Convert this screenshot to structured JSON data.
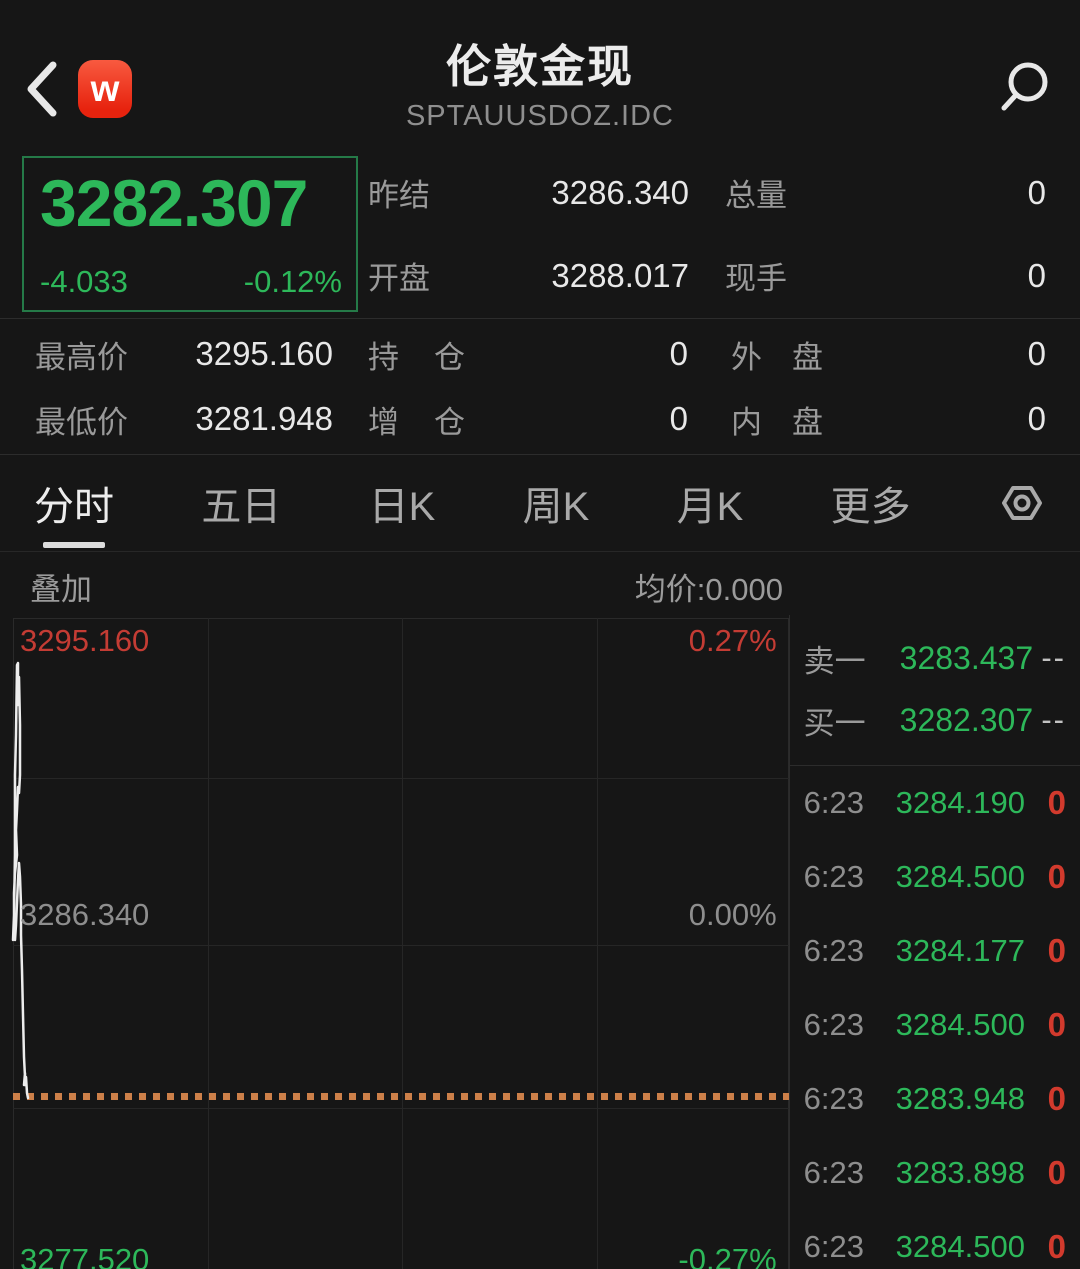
{
  "header": {
    "title": "伦敦金现",
    "subtitle": "SPTAUUSDOZ.IDC",
    "logo_letter": "w"
  },
  "quote": {
    "last_price": "3282.307",
    "change": "-4.033",
    "change_pct": "-0.12%",
    "fields": [
      {
        "label": "昨结",
        "value": "3286.340"
      },
      {
        "label": "总量",
        "value": "0"
      },
      {
        "label": "开盘",
        "value": "3288.017"
      },
      {
        "label": "现手",
        "value": "0"
      }
    ],
    "fields2": [
      {
        "label": "最高价",
        "value": "3295.160"
      },
      {
        "label": "持仓",
        "value": "0"
      },
      {
        "label": "外盘",
        "value": "0"
      },
      {
        "label": "最低价",
        "value": "3281.948"
      },
      {
        "label": "增仓",
        "value": "0"
      },
      {
        "label": "内盘",
        "value": "0"
      }
    ]
  },
  "tabs": {
    "items": [
      {
        "label": "分时"
      },
      {
        "label": "五日"
      },
      {
        "label": "日K"
      },
      {
        "label": "周K"
      },
      {
        "label": "月K"
      },
      {
        "label": "更多"
      }
    ],
    "active": "分时"
  },
  "overlay": {
    "label": "叠加",
    "avg_price": "均价:0.000"
  },
  "chart": {
    "high_price": "3295.160",
    "high_pct": "0.27%",
    "mid_price": "3286.340",
    "mid_pct": "0.00%",
    "low_price": "3277.520",
    "low_pct": "-0.27%",
    "line_points": [
      [
        13,
        325
      ],
      [
        14,
        300
      ],
      [
        15,
        240
      ],
      [
        15,
        160
      ],
      [
        16,
        120
      ],
      [
        17,
        50
      ],
      [
        18,
        48
      ],
      [
        18,
        90
      ],
      [
        19,
        62
      ],
      [
        20,
        110
      ],
      [
        20,
        160
      ],
      [
        19,
        178
      ],
      [
        18,
        172
      ],
      [
        17,
        195
      ],
      [
        16,
        215
      ],
      [
        17,
        240
      ],
      [
        15,
        258
      ],
      [
        14,
        278
      ],
      [
        14,
        305
      ],
      [
        15,
        325
      ],
      [
        16,
        310
      ],
      [
        17,
        288
      ],
      [
        18,
        265
      ],
      [
        19,
        248
      ],
      [
        20,
        262
      ],
      [
        21,
        290
      ],
      [
        21,
        320
      ],
      [
        22,
        355
      ],
      [
        23,
        400
      ],
      [
        24,
        442
      ],
      [
        25,
        462
      ],
      [
        24,
        470
      ],
      [
        25,
        458
      ],
      [
        25,
        470
      ],
      [
        26,
        462
      ],
      [
        27,
        478
      ],
      [
        28,
        483
      ]
    ],
    "colors": {
      "up_red": "#c43c34",
      "down_green": "#2db85a",
      "neutral_gray": "#8e8e8e",
      "price_dotted_orange": "#cd8049",
      "line_white": "#ededed"
    }
  },
  "order_book": {
    "rows": [
      {
        "label": "卖一",
        "price": "3283.437",
        "qty": "--"
      },
      {
        "label": "买一",
        "price": "3282.307",
        "qty": "--"
      }
    ]
  },
  "trades": {
    "rows": [
      {
        "time": "6:23",
        "price": "3284.190",
        "vol": "0"
      },
      {
        "time": "6:23",
        "price": "3284.500",
        "vol": "0"
      },
      {
        "time": "6:23",
        "price": "3284.177",
        "vol": "0"
      },
      {
        "time": "6:23",
        "price": "3284.500",
        "vol": "0"
      },
      {
        "time": "6:23",
        "price": "3283.948",
        "vol": "0"
      },
      {
        "time": "6:23",
        "price": "3283.898",
        "vol": "0"
      },
      {
        "time": "6:23",
        "price": "3284.500",
        "vol": "0"
      }
    ]
  }
}
